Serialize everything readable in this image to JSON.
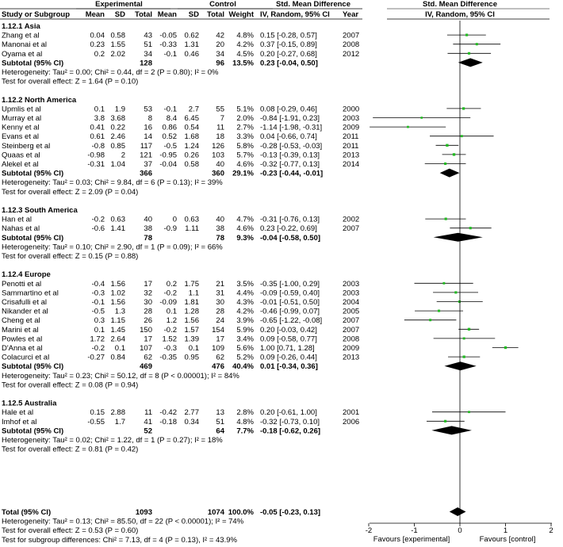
{
  "chart_data": {
    "type": "forest",
    "headers": {
      "experimental": "Experimental",
      "control": "Control",
      "std_mean_diff": "Std. Mean Difference",
      "study": "Study or Subgroup",
      "mean": "Mean",
      "sd": "SD",
      "total": "Total",
      "weight": "Weight",
      "method": "IV, Random, 95% CI",
      "year": "Year"
    },
    "groups": [
      {
        "title": "1.12.1 Asia",
        "studies": [
          {
            "name": "Zhang et al",
            "e_mean": "0.04",
            "e_sd": "0.58",
            "e_n": "43",
            "c_mean": "-0.05",
            "c_sd": "0.62",
            "c_n": "42",
            "weight": "4.8%",
            "ci_text": "0.15 [-0.28, 0.57]",
            "year": "2007",
            "smd": 0.15,
            "lo": -0.28,
            "hi": 0.57
          },
          {
            "name": "Manonai et al",
            "e_mean": "0.23",
            "e_sd": "1.55",
            "e_n": "51",
            "c_mean": "-0.33",
            "c_sd": "1.31",
            "c_n": "20",
            "weight": "4.2%",
            "ci_text": "0.37 [-0.15, 0.89]",
            "year": "2008",
            "smd": 0.37,
            "lo": -0.15,
            "hi": 0.89
          },
          {
            "name": "Oyama et al",
            "e_mean": "0.2",
            "e_sd": "2.02",
            "e_n": "34",
            "c_mean": "-0.1",
            "c_sd": "0.46",
            "c_n": "34",
            "weight": "4.5%",
            "ci_text": "0.20 [-0.27, 0.68]",
            "year": "2012",
            "smd": 0.2,
            "lo": -0.27,
            "hi": 0.68
          }
        ],
        "subtotal": {
          "label": "Subtotal (95% CI)",
          "e_n": "128",
          "c_n": "96",
          "weight": "13.5%",
          "ci_text": "0.23 [-0.04, 0.50]",
          "smd": 0.23,
          "lo": -0.04,
          "hi": 0.5
        },
        "heterogeneity": "Heterogeneity: Tau² = 0.00; Chi² = 0.44, df = 2 (P = 0.80); I² = 0%",
        "overall": "Test for overall effect: Z = 1.64 (P = 0.10)"
      },
      {
        "title": "1.12.2 North America",
        "studies": [
          {
            "name": "Upmlis et al",
            "e_mean": "0.1",
            "e_sd": "1.9",
            "e_n": "53",
            "c_mean": "-0.1",
            "c_sd": "2.7",
            "c_n": "55",
            "weight": "5.1%",
            "ci_text": "0.08 [-0.29, 0.46]",
            "year": "2000",
            "smd": 0.08,
            "lo": -0.29,
            "hi": 0.46
          },
          {
            "name": "Murray et al",
            "e_mean": "3.8",
            "e_sd": "3.68",
            "e_n": "8",
            "c_mean": "8.4",
            "c_sd": "6.45",
            "c_n": "7",
            "weight": "2.0%",
            "ci_text": "-0.84 [-1.91, 0.23]",
            "year": "2003",
            "smd": -0.84,
            "lo": -1.91,
            "hi": 0.23
          },
          {
            "name": "Kenny et al",
            "e_mean": "0.41",
            "e_sd": "0.22",
            "e_n": "16",
            "c_mean": "0.86",
            "c_sd": "0.54",
            "c_n": "11",
            "weight": "2.7%",
            "ci_text": "-1.14 [-1.98, -0.31]",
            "year": "2009",
            "smd": -1.14,
            "lo": -1.98,
            "hi": -0.31
          },
          {
            "name": "Evans et al",
            "e_mean": "0.61",
            "e_sd": "2.46",
            "e_n": "14",
            "c_mean": "0.52",
            "c_sd": "1.68",
            "c_n": "18",
            "weight": "3.3%",
            "ci_text": "0.04 [-0.66, 0.74]",
            "year": "2011",
            "smd": 0.04,
            "lo": -0.66,
            "hi": 0.74
          },
          {
            "name": "Steinberg et al",
            "e_mean": "-0.8",
            "e_sd": "0.85",
            "e_n": "117",
            "c_mean": "-0.5",
            "c_sd": "1.24",
            "c_n": "126",
            "weight": "5.8%",
            "ci_text": "-0.28 [-0.53, -0.03]",
            "year": "2011",
            "smd": -0.28,
            "lo": -0.53,
            "hi": -0.03
          },
          {
            "name": "Quaas et al",
            "e_mean": "-0.98",
            "e_sd": "2",
            "e_n": "121",
            "c_mean": "-0.95",
            "c_sd": "0.26",
            "c_n": "103",
            "weight": "5.7%",
            "ci_text": "-0.13 [-0.39, 0.13]",
            "year": "2013",
            "smd": -0.13,
            "lo": -0.39,
            "hi": 0.13
          },
          {
            "name": "Alekel et al",
            "e_mean": "-0.31",
            "e_sd": "1.04",
            "e_n": "37",
            "c_mean": "-0.04",
            "c_sd": "0.58",
            "c_n": "40",
            "weight": "4.6%",
            "ci_text": "-0.32 [-0.77, 0.13]",
            "year": "2014",
            "smd": -0.32,
            "lo": -0.77,
            "hi": 0.13
          }
        ],
        "subtotal": {
          "label": "Subtotal (95% CI)",
          "e_n": "366",
          "c_n": "360",
          "weight": "29.1%",
          "ci_text": "-0.23 [-0.44, -0.01]",
          "smd": -0.23,
          "lo": -0.44,
          "hi": -0.01
        },
        "heterogeneity": "Heterogeneity: Tau² = 0.03; Chi² = 9.84, df = 6 (P = 0.13); I² = 39%",
        "overall": "Test for overall effect: Z = 2.09 (P = 0.04)"
      },
      {
        "title": "1.12.3 South America",
        "studies": [
          {
            "name": "Han et al",
            "e_mean": "-0.2",
            "e_sd": "0.63",
            "e_n": "40",
            "c_mean": "0",
            "c_sd": "0.63",
            "c_n": "40",
            "weight": "4.7%",
            "ci_text": "-0.31 [-0.76, 0.13]",
            "year": "2002",
            "smd": -0.31,
            "lo": -0.76,
            "hi": 0.13
          },
          {
            "name": "Nahas et al",
            "e_mean": "-0.6",
            "e_sd": "1.41",
            "e_n": "38",
            "c_mean": "-0.9",
            "c_sd": "1.11",
            "c_n": "38",
            "weight": "4.6%",
            "ci_text": "0.23 [-0.22, 0.69]",
            "year": "2007",
            "smd": 0.23,
            "lo": -0.22,
            "hi": 0.69
          }
        ],
        "subtotal": {
          "label": "Subtotal (95% CI)",
          "e_n": "78",
          "c_n": "78",
          "weight": "9.3%",
          "ci_text": "-0.04 [-0.58, 0.50]",
          "smd": -0.04,
          "lo": -0.58,
          "hi": 0.5
        },
        "heterogeneity": "Heterogeneity: Tau² = 0.10; Chi² = 2.90, df = 1 (P = 0.09); I² = 66%",
        "overall": "Test for overall effect: Z = 0.15 (P = 0.88)"
      },
      {
        "title": "1.12.4 Europe",
        "studies": [
          {
            "name": "Penotti et al",
            "e_mean": "-0.4",
            "e_sd": "1.56",
            "e_n": "17",
            "c_mean": "0.2",
            "c_sd": "1.75",
            "c_n": "21",
            "weight": "3.5%",
            "ci_text": "-0.35 [-1.00, 0.29]",
            "year": "2003",
            "smd": -0.35,
            "lo": -1.0,
            "hi": 0.29
          },
          {
            "name": "Sammartino et al",
            "e_mean": "-0.3",
            "e_sd": "1.02",
            "e_n": "32",
            "c_mean": "-0.2",
            "c_sd": "1.1",
            "c_n": "31",
            "weight": "4.4%",
            "ci_text": "-0.09 [-0.59, 0.40]",
            "year": "2003",
            "smd": -0.09,
            "lo": -0.59,
            "hi": 0.4
          },
          {
            "name": "Crisafulli et al",
            "e_mean": "-0.1",
            "e_sd": "1.56",
            "e_n": "30",
            "c_mean": "-0.09",
            "c_sd": "1.81",
            "c_n": "30",
            "weight": "4.3%",
            "ci_text": "-0.01 [-0.51, 0.50]",
            "year": "2004",
            "smd": -0.01,
            "lo": -0.51,
            "hi": 0.5
          },
          {
            "name": "Nikander et al",
            "e_mean": "-0.5",
            "e_sd": "1.3",
            "e_n": "28",
            "c_mean": "0.1",
            "c_sd": "1.28",
            "c_n": "28",
            "weight": "4.2%",
            "ci_text": "-0.46 [-0.99, 0.07]",
            "year": "2005",
            "smd": -0.46,
            "lo": -0.99,
            "hi": 0.07
          },
          {
            "name": "Cheng et al",
            "e_mean": "0.3",
            "e_sd": "1.15",
            "e_n": "26",
            "c_mean": "1.2",
            "c_sd": "1.56",
            "c_n": "24",
            "weight": "3.9%",
            "ci_text": "-0.65 [-1.22, -0.08]",
            "year": "2007",
            "smd": -0.65,
            "lo": -1.22,
            "hi": -0.08
          },
          {
            "name": "Marini et al",
            "e_mean": "0.1",
            "e_sd": "1.45",
            "e_n": "150",
            "c_mean": "-0.2",
            "c_sd": "1.57",
            "c_n": "154",
            "weight": "5.9%",
            "ci_text": "0.20 [-0.03, 0.42]",
            "year": "2007",
            "smd": 0.2,
            "lo": -0.03,
            "hi": 0.42
          },
          {
            "name": "Powles et al",
            "e_mean": "1.72",
            "e_sd": "2.64",
            "e_n": "17",
            "c_mean": "1.52",
            "c_sd": "1.39",
            "c_n": "17",
            "weight": "3.4%",
            "ci_text": "0.09 [-0.58, 0.77]",
            "year": "2008",
            "smd": 0.09,
            "lo": -0.58,
            "hi": 0.77
          },
          {
            "name": "D'Anna et al",
            "e_mean": "-0.2",
            "e_sd": "0.1",
            "e_n": "107",
            "c_mean": "-0.3",
            "c_sd": "0.1",
            "c_n": "109",
            "weight": "5.6%",
            "ci_text": "1.00 [0.71, 1.28]",
            "year": "2009",
            "smd": 1.0,
            "lo": 0.71,
            "hi": 1.28
          },
          {
            "name": "Colacurci et al",
            "e_mean": "-0.27",
            "e_sd": "0.84",
            "e_n": "62",
            "c_mean": "-0.35",
            "c_sd": "0.95",
            "c_n": "62",
            "weight": "5.2%",
            "ci_text": "0.09 [-0.26, 0.44]",
            "year": "2013",
            "smd": 0.09,
            "lo": -0.26,
            "hi": 0.44
          }
        ],
        "subtotal": {
          "label": "Subtotal (95% CI)",
          "e_n": "469",
          "c_n": "476",
          "weight": "40.4%",
          "ci_text": "0.01 [-0.34, 0.36]",
          "smd": 0.01,
          "lo": -0.34,
          "hi": 0.36
        },
        "heterogeneity": "Heterogeneity: Tau² = 0.23; Chi² = 50.12, df = 8 (P < 0.00001); I² = 84%",
        "overall": "Test for overall effect: Z = 0.08 (P = 0.94)"
      },
      {
        "title": "1.12.5 Australia",
        "studies": [
          {
            "name": "Hale et al",
            "e_mean": "0.15",
            "e_sd": "2.88",
            "e_n": "11",
            "c_mean": "-0.42",
            "c_sd": "2.77",
            "c_n": "13",
            "weight": "2.8%",
            "ci_text": "0.20 [-0.61, 1.00]",
            "year": "2001",
            "smd": 0.2,
            "lo": -0.61,
            "hi": 1.0
          },
          {
            "name": "Imhof et al",
            "e_mean": "-0.55",
            "e_sd": "1.7",
            "e_n": "41",
            "c_mean": "-0.18",
            "c_sd": "0.34",
            "c_n": "51",
            "weight": "4.8%",
            "ci_text": "-0.32 [-0.73, 0.10]",
            "year": "2006",
            "smd": -0.32,
            "lo": -0.73,
            "hi": 0.1
          }
        ],
        "subtotal": {
          "label": "Subtotal (95% CI)",
          "e_n": "52",
          "c_n": "64",
          "weight": "7.7%",
          "ci_text": "-0.18 [-0.62, 0.26]",
          "smd": -0.18,
          "lo": -0.62,
          "hi": 0.26
        },
        "heterogeneity": "Heterogeneity: Tau² = 0.02; Chi² = 1.22, df = 1 (P = 0.27); I² = 18%",
        "overall": "Test for overall effect: Z = 0.81 (P = 0.42)"
      }
    ],
    "total": {
      "label": "Total (95% CI)",
      "e_n": "1093",
      "c_n": "1074",
      "weight": "100.0%",
      "ci_text": "-0.05 [-0.23, 0.13]",
      "smd": -0.05,
      "lo": -0.23,
      "hi": 0.13
    },
    "total_heterogeneity": "Heterogeneity: Tau² = 0.13; Chi² = 85.50, df = 22 (P < 0.00001); I² = 74%",
    "total_overall": "Test for overall effect: Z = 0.53 (P = 0.60)",
    "subgroup_test": "Test for subgroup differences: Chi² = 7.13, df = 4 (P = 0.13), I² = 43.9%",
    "x_axis": {
      "range": [
        -2,
        2
      ],
      "ticks": [
        -2,
        -1,
        0,
        1,
        2
      ],
      "tick_labels": [
        "-2",
        "-1",
        "0",
        "1",
        "2"
      ]
    },
    "favours_left": "Favours [experimental]",
    "favours_right": "Favours [control]",
    "colors": {
      "point": "#22bb22",
      "line": "#000000",
      "diamond": "#000000"
    }
  }
}
